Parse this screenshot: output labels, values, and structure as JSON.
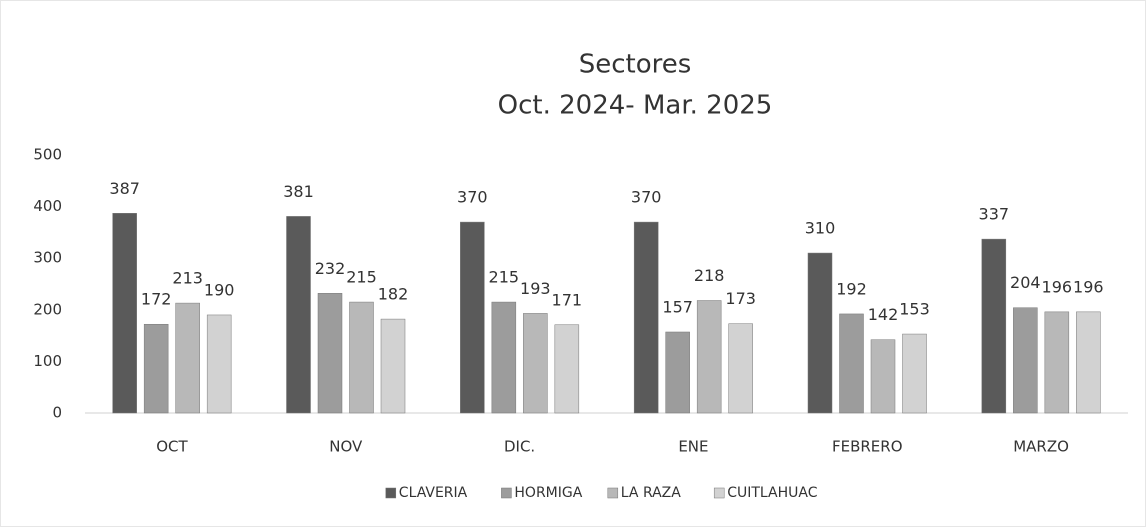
{
  "chart_data": {
    "type": "bar",
    "title": "Sectores",
    "subtitle": "Oct. 2024- Mar. 2025",
    "categories": [
      "OCT",
      "NOV",
      "DIC.",
      "ENE",
      "FEBRERO",
      "MARZO"
    ],
    "series": [
      {
        "name": "CLAVERIA",
        "color": "#5a5a5a",
        "values": [
          387,
          381,
          370,
          370,
          310,
          337
        ]
      },
      {
        "name": "HORMIGA",
        "color": "#9c9c9c",
        "values": [
          172,
          232,
          215,
          157,
          192,
          204
        ]
      },
      {
        "name": "LA RAZA",
        "color": "#b8b8b8",
        "values": [
          213,
          215,
          193,
          218,
          142,
          196
        ]
      },
      {
        "name": "CUITLAHUAC",
        "color": "#d2d2d2",
        "values": [
          190,
          182,
          171,
          173,
          153,
          196
        ]
      }
    ],
    "ylim": [
      0,
      500
    ],
    "yticks": [
      0,
      100,
      200,
      300,
      400,
      500
    ],
    "grid": false,
    "legend": "bottom"
  }
}
